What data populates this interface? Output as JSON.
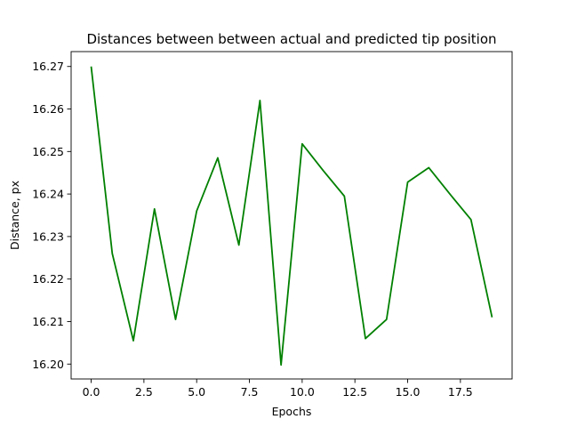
{
  "chart_data": {
    "type": "line",
    "title": "Distances between between actual and predicted tip position",
    "xlabel": "Epochs",
    "ylabel": "Distance, px",
    "xlim": [
      -0.95,
      19.95
    ],
    "ylim": [
      16.1965,
      16.2735
    ],
    "grid": false,
    "x_ticks": [
      0.0,
      2.5,
      5.0,
      7.5,
      10.0,
      12.5,
      15.0,
      17.5
    ],
    "x_tick_labels": [
      "0.0",
      "2.5",
      "5.0",
      "7.5",
      "10.0",
      "12.5",
      "15.0",
      "17.5"
    ],
    "y_ticks": [
      16.2,
      16.21,
      16.22,
      16.23,
      16.24,
      16.25,
      16.26,
      16.27
    ],
    "y_tick_labels": [
      "16.20",
      "16.21",
      "16.22",
      "16.23",
      "16.24",
      "16.25",
      "16.26",
      "16.27"
    ],
    "series": [
      {
        "color": "#008000",
        "x": [
          0,
          1,
          2,
          3,
          4,
          5,
          6,
          7,
          8,
          9,
          10,
          11,
          12,
          13,
          14,
          15,
          16,
          17,
          18,
          19
        ],
        "values": [
          16.27,
          16.226,
          16.2055,
          16.2365,
          16.2105,
          16.236,
          16.2485,
          16.228,
          16.262,
          16.1998,
          16.2518,
          16.2455,
          16.2395,
          16.206,
          16.2105,
          16.2428,
          16.2462,
          16.24,
          16.234,
          16.211
        ]
      }
    ]
  }
}
